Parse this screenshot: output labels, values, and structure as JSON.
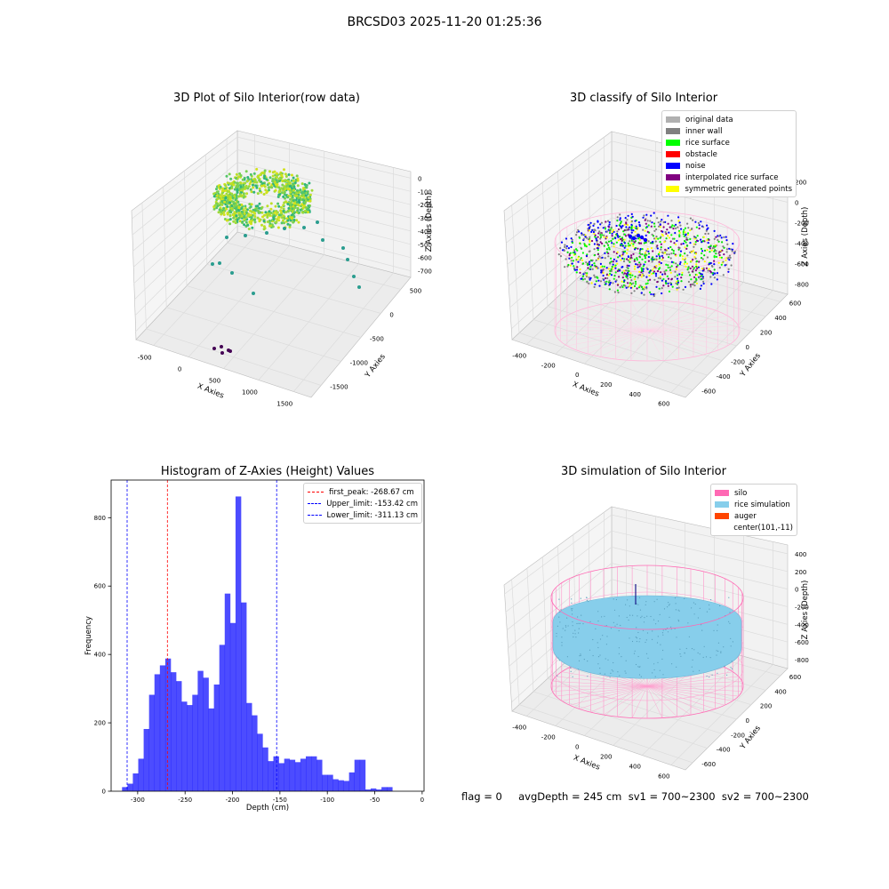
{
  "suptitle": "BRCSD03 2025-11-20 01:25:36",
  "status_text": "flag = 0     avgDepth = 245 cm  sv1 = 700~2300  sv2 = 700~2300",
  "panels": {
    "raw": {
      "title": "3D Plot of Silo Interior(row data)",
      "xlabel": "X Axies",
      "ylabel": "Y Axies",
      "zlabel": "Z Axies (Depth)",
      "xticks": [
        "-500",
        "0",
        "500",
        "1000",
        "1500"
      ],
      "yticks": [
        "500",
        "0",
        "-500",
        "-1000",
        "-1500"
      ],
      "zticks": [
        "0",
        "-100",
        "-200",
        "-300",
        "-400",
        "-500",
        "-600",
        "-700"
      ]
    },
    "classify": {
      "title": "3D classify of Silo Interior",
      "xlabel": "X Axies",
      "ylabel": "Y Axies",
      "zlabel": "Z Axies (Depth)",
      "xticks": [
        "-400",
        "-200",
        "0",
        "200",
        "400",
        "600"
      ],
      "yticks": [
        "600",
        "400",
        "200",
        "0",
        "-200",
        "-400",
        "-600"
      ],
      "zticks": [
        "200",
        "0",
        "-200",
        "-400",
        "-600",
        "-800"
      ],
      "legend": [
        {
          "label": "original data",
          "color": "#b0b0b0"
        },
        {
          "label": "inner wall",
          "color": "#808080"
        },
        {
          "label": "rice surface",
          "color": "#00ff00"
        },
        {
          "label": "obstacle",
          "color": "#ff0000"
        },
        {
          "label": "noise",
          "color": "#0000ff"
        },
        {
          "label": "interpolated rice surface",
          "color": "#800080"
        },
        {
          "label": "symmetric generated points",
          "color": "#ffff00"
        }
      ]
    },
    "simulation": {
      "title": "3D simulation of Silo Interior",
      "xlabel": "X Axies",
      "ylabel": "Y Axies",
      "zlabel": "Z Axies (Depth)",
      "xticks": [
        "-400",
        "-200",
        "0",
        "200",
        "400",
        "600"
      ],
      "yticks": [
        "600",
        "400",
        "200",
        "0",
        "-200",
        "-400",
        "-600"
      ],
      "zticks": [
        "400",
        "200",
        "0",
        "-200",
        "-400",
        "-600",
        "-800"
      ],
      "legend": [
        {
          "label": "silo",
          "color": "#ff69b4"
        },
        {
          "label": "rice simulation",
          "color": "#87ceeb"
        },
        {
          "label": "auger",
          "color": "#ff4500"
        },
        {
          "label": "center(101,-11)",
          "color": ""
        }
      ]
    }
  },
  "chart_data": [
    {
      "type": "bar",
      "title": "Histogram of Z-Axies (Height) Values",
      "xlabel": "Depth (cm)",
      "ylabel": "Frequency",
      "xlim": [
        -328,
        2
      ],
      "ylim": [
        0,
        910
      ],
      "xticks": [
        -300,
        -250,
        -200,
        -150,
        -100,
        -50,
        0
      ],
      "yticks": [
        0,
        200,
        400,
        600,
        800
      ],
      "bar_color": "#0000ff",
      "bin_width": 5.7,
      "bin_start": -316.5,
      "values": [
        12,
        22,
        52,
        95,
        182,
        282,
        342,
        368,
        388,
        348,
        322,
        262,
        252,
        282,
        352,
        332,
        242,
        312,
        428,
        578,
        492,
        862,
        552,
        258,
        222,
        168,
        128,
        88,
        102,
        82,
        95,
        92,
        85,
        95,
        102,
        102,
        92,
        48,
        48,
        35,
        32,
        30,
        55,
        92,
        92,
        5,
        8,
        5,
        12,
        12
      ],
      "lines": [
        {
          "label": "first_peak: -268.67 cm",
          "x": -268.67,
          "color": "#ff0000"
        },
        {
          "label": "Upper_limit: -153.42 cm",
          "x": -153.42,
          "color": "#0000ff"
        },
        {
          "label": "Lower_limit: -311.13 cm",
          "x": -311.13,
          "color": "#0000ff"
        }
      ]
    }
  ]
}
